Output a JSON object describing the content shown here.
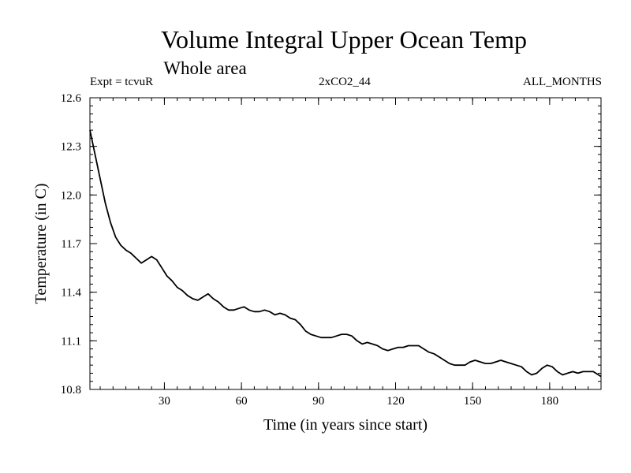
{
  "chart_data": {
    "type": "line",
    "title": "Volume Integral Upper Ocean Temp",
    "subtitle": "Whole area",
    "header_left": "Expt = tcvuR",
    "header_center": "2xCO2_44",
    "header_right": "ALL_MONTHS",
    "xlabel": "Time (in years since start)",
    "ylabel": "Temperature (in C)",
    "xlim": [
      1,
      200
    ],
    "ylim": [
      10.8,
      12.6
    ],
    "x_ticks": [
      30,
      60,
      90,
      120,
      150,
      180
    ],
    "y_ticks": [
      10.8,
      11.1,
      11.4,
      11.7,
      12.0,
      12.3,
      12.6
    ],
    "x_tick_labels": [
      "30",
      "60",
      "90",
      "120",
      "150",
      "180"
    ],
    "y_tick_labels": [
      "10.8",
      "11.1",
      "11.4",
      "11.7",
      "12.0",
      "12.3",
      "12.6"
    ],
    "grid": false,
    "series": [
      {
        "color": "#000000",
        "points": [
          [
            1,
            12.4
          ],
          [
            3,
            12.25
          ],
          [
            5,
            12.1
          ],
          [
            7,
            11.95
          ],
          [
            9,
            11.83
          ],
          [
            11,
            11.74
          ],
          [
            13,
            11.69
          ],
          [
            15,
            11.66
          ],
          [
            17,
            11.64
          ],
          [
            19,
            11.61
          ],
          [
            21,
            11.58
          ],
          [
            23,
            11.6
          ],
          [
            25,
            11.62
          ],
          [
            27,
            11.6
          ],
          [
            29,
            11.55
          ],
          [
            31,
            11.5
          ],
          [
            33,
            11.47
          ],
          [
            35,
            11.43
          ],
          [
            37,
            11.41
          ],
          [
            39,
            11.38
          ],
          [
            41,
            11.36
          ],
          [
            43,
            11.35
          ],
          [
            45,
            11.37
          ],
          [
            47,
            11.39
          ],
          [
            49,
            11.36
          ],
          [
            51,
            11.34
          ],
          [
            53,
            11.31
          ],
          [
            55,
            11.29
          ],
          [
            57,
            11.29
          ],
          [
            59,
            11.3
          ],
          [
            61,
            11.31
          ],
          [
            63,
            11.29
          ],
          [
            65,
            11.28
          ],
          [
            67,
            11.28
          ],
          [
            69,
            11.29
          ],
          [
            71,
            11.28
          ],
          [
            73,
            11.26
          ],
          [
            75,
            11.27
          ],
          [
            77,
            11.26
          ],
          [
            79,
            11.24
          ],
          [
            81,
            11.23
          ],
          [
            83,
            11.2
          ],
          [
            85,
            11.16
          ],
          [
            87,
            11.14
          ],
          [
            89,
            11.13
          ],
          [
            91,
            11.12
          ],
          [
            93,
            11.12
          ],
          [
            95,
            11.12
          ],
          [
            97,
            11.13
          ],
          [
            99,
            11.14
          ],
          [
            101,
            11.14
          ],
          [
            103,
            11.13
          ],
          [
            105,
            11.1
          ],
          [
            107,
            11.08
          ],
          [
            109,
            11.09
          ],
          [
            111,
            11.08
          ],
          [
            113,
            11.07
          ],
          [
            115,
            11.05
          ],
          [
            117,
            11.04
          ],
          [
            119,
            11.05
          ],
          [
            121,
            11.06
          ],
          [
            123,
            11.06
          ],
          [
            125,
            11.07
          ],
          [
            127,
            11.07
          ],
          [
            129,
            11.07
          ],
          [
            131,
            11.05
          ],
          [
            133,
            11.03
          ],
          [
            135,
            11.02
          ],
          [
            137,
            11.0
          ],
          [
            139,
            10.98
          ],
          [
            141,
            10.96
          ],
          [
            143,
            10.95
          ],
          [
            145,
            10.95
          ],
          [
            147,
            10.95
          ],
          [
            149,
            10.97
          ],
          [
            151,
            10.98
          ],
          [
            153,
            10.97
          ],
          [
            155,
            10.96
          ],
          [
            157,
            10.96
          ],
          [
            159,
            10.97
          ],
          [
            161,
            10.98
          ],
          [
            163,
            10.97
          ],
          [
            165,
            10.96
          ],
          [
            167,
            10.95
          ],
          [
            169,
            10.94
          ],
          [
            171,
            10.91
          ],
          [
            173,
            10.89
          ],
          [
            175,
            10.9
          ],
          [
            177,
            10.93
          ],
          [
            179,
            10.95
          ],
          [
            181,
            10.94
          ],
          [
            183,
            10.91
          ],
          [
            185,
            10.89
          ],
          [
            187,
            10.9
          ],
          [
            189,
            10.91
          ],
          [
            191,
            10.9
          ],
          [
            193,
            10.91
          ],
          [
            195,
            10.91
          ],
          [
            197,
            10.91
          ],
          [
            199,
            10.89
          ],
          [
            200,
            10.88
          ]
        ]
      }
    ]
  }
}
